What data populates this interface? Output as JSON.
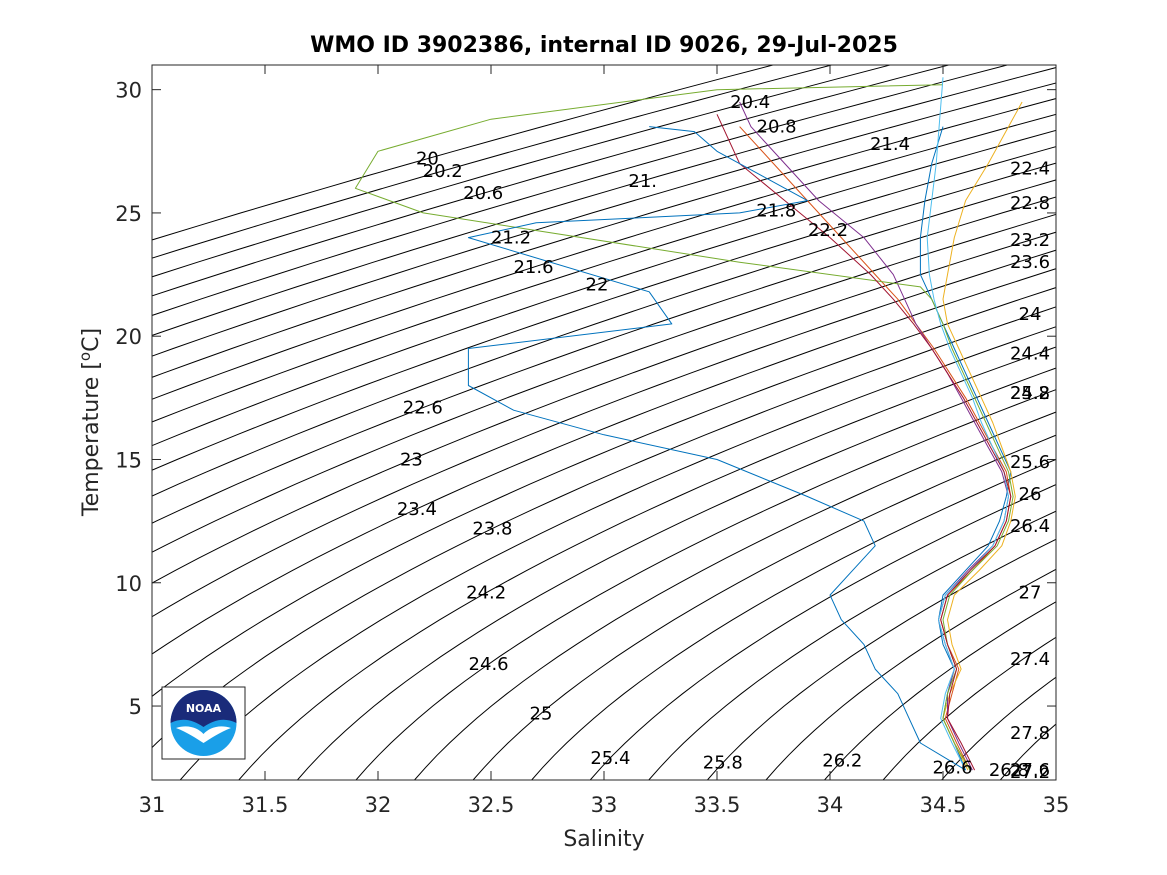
{
  "chart_data": {
    "type": "line",
    "title": "WMO ID 3902386, internal ID 9026, 29-Jul-2025",
    "xlabel": "Salinity",
    "ylabel_main": "Temperature [",
    "ylabel_sup": "o",
    "ylabel_tail": "C]",
    "xlim": [
      31,
      35
    ],
    "ylim": [
      2,
      31
    ],
    "xticks": [
      "31",
      "31.5",
      "32",
      "32.5",
      "33",
      "33.5",
      "34",
      "34.5",
      "35"
    ],
    "yticks": [
      "5",
      "10",
      "15",
      "20",
      "25",
      "30"
    ],
    "density_contours": {
      "from": 19.8,
      "to": 27.8,
      "step": 0.2,
      "labels": [
        "20",
        "20.2",
        "20.4",
        "20.6",
        "20.8",
        "21.",
        "21.2",
        "21.4",
        "21.6",
        "21.8",
        "22",
        "22.2",
        "22.4",
        "22.6",
        "22.8",
        "23",
        "23.2",
        "23.4",
        "23.6",
        "23.8",
        "24",
        "24.2",
        "24.4",
        "24.6",
        "24.8",
        "25",
        "25.2",
        "25.4",
        "25.6",
        "25.8",
        "26",
        "26.2",
        "26.4",
        "26.6",
        "26.8",
        "27",
        "27.2",
        "27.4",
        "27.6",
        "27.8"
      ]
    },
    "series": [
      {
        "color": "#0072BD",
        "s": [
          34.6,
          34.55,
          34.5,
          34.52,
          34.55,
          34.5,
          34.48,
          34.5,
          34.6,
          34.7,
          34.75,
          34.78,
          34.8,
          34.75,
          34.7,
          34.65,
          34.6,
          34.55,
          34.5,
          34.45,
          34.4,
          34.4,
          34.42,
          34.45,
          34.5
        ],
        "t": [
          2.4,
          3.5,
          4.5,
          5.5,
          6.5,
          7.5,
          8.5,
          9.5,
          10.5,
          11.5,
          12.5,
          13.5,
          14.5,
          15.5,
          16.5,
          17.5,
          18.5,
          19.5,
          20.5,
          21.5,
          22.5,
          24,
          25.5,
          27,
          28.5
        ]
      },
      {
        "color": "#D95319",
        "s": [
          34.62,
          34.56,
          34.51,
          34.54,
          34.57,
          34.52,
          34.49,
          34.52,
          34.63,
          34.73,
          34.78,
          34.8,
          34.78,
          34.72,
          34.66,
          34.6,
          34.53,
          34.46,
          34.38,
          34.3,
          34.2,
          34.05,
          33.9,
          33.75,
          33.6
        ],
        "t": [
          2.4,
          3.5,
          4.5,
          5.5,
          6.5,
          7.5,
          8.5,
          9.5,
          10.5,
          11.5,
          12.5,
          13.5,
          14.5,
          15.5,
          16.5,
          17.5,
          18.5,
          19.5,
          20.5,
          21.5,
          22.5,
          24,
          25.5,
          27,
          28.5
        ]
      },
      {
        "color": "#EDB120",
        "s": [
          34.61,
          34.55,
          34.5,
          34.53,
          34.58,
          34.54,
          34.52,
          34.55,
          34.66,
          34.76,
          34.8,
          34.82,
          34.8,
          34.76,
          34.72,
          34.67,
          34.62,
          34.57,
          34.52,
          34.5,
          34.52,
          34.55,
          34.6,
          34.7,
          34.85
        ],
        "t": [
          2.4,
          3.5,
          4.5,
          5.5,
          6.5,
          7.5,
          8.5,
          9.5,
          10.5,
          11.5,
          12.5,
          13.5,
          14.5,
          15.5,
          16.5,
          17.5,
          18.5,
          19.5,
          20.5,
          21.5,
          22.5,
          24,
          25.5,
          27,
          29.5
        ]
      },
      {
        "color": "#7E2F8E",
        "s": [
          34.63,
          34.57,
          34.52,
          34.52,
          34.55,
          34.51,
          34.48,
          34.51,
          34.61,
          34.72,
          34.77,
          34.79,
          34.76,
          34.7,
          34.64,
          34.58,
          34.52,
          34.45,
          34.38,
          34.33,
          34.28,
          34.15,
          33.95,
          33.8,
          33.65,
          33.6
        ],
        "t": [
          2.4,
          3.5,
          4.5,
          5.5,
          6.5,
          7.5,
          8.5,
          9.5,
          10.5,
          11.5,
          12.5,
          13.5,
          14.5,
          15.5,
          16.5,
          17.5,
          18.5,
          19.5,
          20.5,
          21.5,
          22.5,
          24,
          25.5,
          27,
          28.5,
          29.5
        ]
      },
      {
        "color": "#77AC30",
        "s": [
          34.62,
          34.55,
          34.5,
          34.52,
          34.56,
          34.52,
          34.5,
          34.53,
          34.63,
          34.74,
          34.79,
          34.81,
          34.79,
          34.74,
          34.69,
          34.64,
          34.59,
          34.54,
          34.5,
          34.45,
          34.4,
          33.6,
          32.2,
          31.9,
          32.0,
          32.5,
          33.5,
          34.5
        ],
        "t": [
          2.4,
          3.5,
          4.5,
          5.5,
          6.5,
          7.5,
          8.5,
          9.5,
          10.5,
          11.5,
          12.5,
          13.5,
          14.5,
          15.5,
          16.5,
          17.5,
          18.5,
          19.5,
          20.5,
          21.5,
          22,
          23,
          25,
          26,
          27.5,
          28.8,
          30,
          30.2
        ]
      },
      {
        "color": "#4DBEEE",
        "s": [
          34.6,
          34.54,
          34.49,
          34.51,
          34.55,
          34.51,
          34.48,
          34.51,
          34.62,
          34.72,
          34.77,
          34.79,
          34.77,
          34.72,
          34.67,
          34.63,
          34.58,
          34.53,
          34.49,
          34.46,
          34.44,
          34.43,
          34.45,
          34.47,
          34.5
        ],
        "t": [
          2.4,
          3.5,
          4.5,
          5.5,
          6.5,
          7.5,
          8.5,
          9.5,
          10.5,
          11.5,
          12.5,
          13.5,
          14.5,
          15.5,
          16.5,
          17.5,
          18.5,
          19.5,
          20.5,
          21.5,
          22.5,
          24,
          25.5,
          27,
          30.5
        ]
      },
      {
        "color": "#A2142F",
        "s": [
          34.64,
          34.58,
          34.52,
          34.53,
          34.56,
          34.52,
          34.49,
          34.52,
          34.62,
          34.73,
          34.78,
          34.8,
          34.77,
          34.71,
          34.65,
          34.59,
          34.52,
          34.45,
          34.37,
          34.28,
          34.18,
          34.0,
          33.8,
          33.6,
          33.5
        ],
        "t": [
          2.4,
          3.5,
          4.5,
          5.5,
          6.5,
          7.5,
          8.5,
          9.5,
          10.5,
          11.5,
          12.5,
          13.5,
          14.5,
          15.5,
          16.5,
          17.5,
          18.5,
          19.5,
          20.5,
          21.5,
          22.5,
          24,
          25.5,
          27,
          29
        ]
      },
      {
        "color": "#0072BD",
        "s": [
          34.6,
          34.4,
          34.35,
          34.3,
          34.2,
          34.15,
          34.05,
          34.0,
          34.1,
          34.2,
          34.15,
          33.9,
          33.5,
          33.0,
          32.6,
          32.4,
          32.4,
          33.3,
          33.2,
          32.4,
          32.7,
          33.6,
          33.9,
          33.7,
          33.5,
          33.4,
          33.2
        ],
        "t": [
          2.4,
          3.5,
          4.5,
          5.5,
          6.5,
          7.5,
          8.5,
          9.5,
          10.5,
          11.5,
          12.5,
          13.5,
          15,
          16,
          17,
          18,
          19.5,
          20.5,
          21.8,
          24,
          24.6,
          25,
          25.5,
          26.5,
          27.5,
          28.3,
          28.5
        ]
      }
    ]
  },
  "logo": {
    "text": "NOAA",
    "name": "noaa-logo"
  }
}
